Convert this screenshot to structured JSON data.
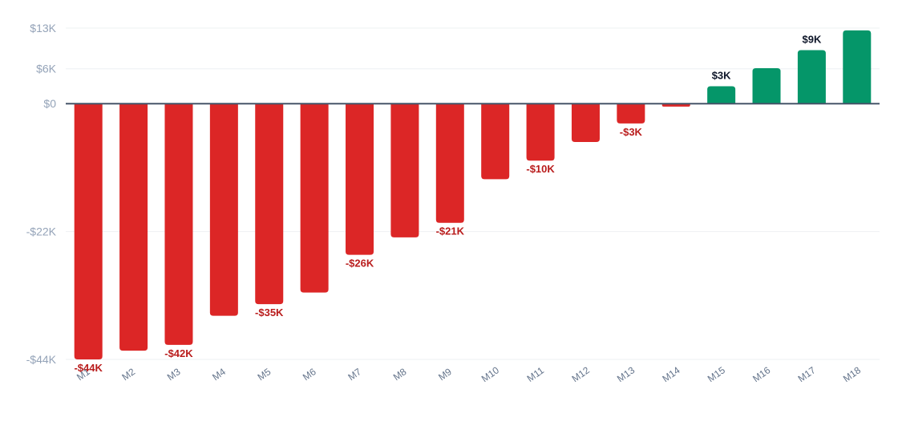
{
  "chart_data": {
    "type": "bar",
    "title": "",
    "xlabel": "",
    "ylabel": "",
    "categories": [
      "M1",
      "M2",
      "M3",
      "M4",
      "M5",
      "M6",
      "M7",
      "M8",
      "M9",
      "M10",
      "M11",
      "M12",
      "M13",
      "M14",
      "M15",
      "M16",
      "M17",
      "M18"
    ],
    "values": [
      -44,
      -42.5,
      -41.5,
      -36.5,
      -34.5,
      -32.5,
      -26,
      -23,
      -20.5,
      -13,
      -9.8,
      -6.6,
      -3.4,
      -0.5,
      3,
      6.1,
      9.2,
      12.6
    ],
    "value_unit": "$K",
    "ylim": [
      -44,
      13
    ],
    "yticks": [
      13,
      6,
      0,
      -22,
      -44
    ],
    "ytick_labels": [
      "$13K",
      "$6K",
      "$0",
      "-$22K",
      "-$44K"
    ],
    "data_labels": [
      {
        "index": 0,
        "text": "-$44K"
      },
      {
        "index": 2,
        "text": "-$42K"
      },
      {
        "index": 4,
        "text": "-$35K"
      },
      {
        "index": 6,
        "text": "-$26K"
      },
      {
        "index": 8,
        "text": "-$21K"
      },
      {
        "index": 10,
        "text": "-$10K"
      },
      {
        "index": 12,
        "text": "-$3K"
      },
      {
        "index": 14,
        "text": "$3K"
      },
      {
        "index": 16,
        "text": "$9K"
      }
    ],
    "grid": true,
    "legend": "none",
    "colors": {
      "positive": "#059669",
      "negative": "#dc2626",
      "zero_line": "#475569",
      "grid": "#eef0f3",
      "positive_label": "#0f172a",
      "negative_label": "#b91c1c"
    }
  }
}
